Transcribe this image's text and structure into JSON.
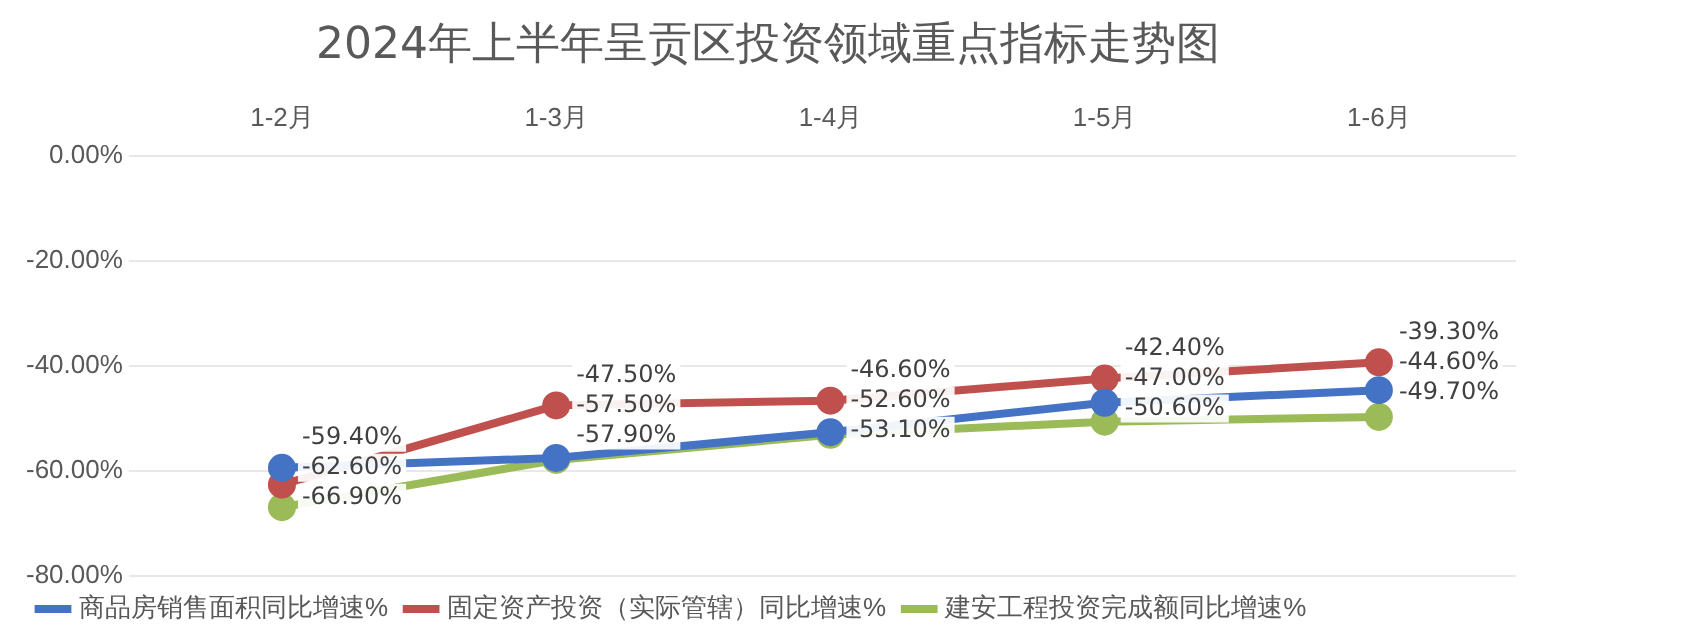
{
  "chart_data": {
    "type": "line",
    "title": "2024年上半年呈贡区投资领域重点指标走势图",
    "categories": [
      "1-2月",
      "1-3月",
      "1-4月",
      "1-5月",
      "1-6月"
    ],
    "series": [
      {
        "name": "商品房销售面积同比增速%",
        "color": "#4472c4",
        "values": [
          -59.4,
          -57.5,
          -52.6,
          -47.0,
          -44.6
        ],
        "value_labels": [
          "-59.40%",
          "-57.50%",
          "-52.60%",
          "-47.00%",
          "-44.60%"
        ]
      },
      {
        "name": "固定资产投资（实际管辖）同比增速%",
        "color": "#c0504d",
        "values": [
          -62.6,
          -47.5,
          -46.6,
          -42.4,
          -39.3
        ],
        "value_labels": [
          "-62.60%",
          "-47.50%",
          "-46.60%",
          "-42.40%",
          "-39.30%"
        ]
      },
      {
        "name": "建安工程投资完成额同比增速%",
        "color": "#9bbb59",
        "values": [
          -66.9,
          -57.9,
          -53.1,
          -50.6,
          -49.7
        ],
        "value_labels": [
          "-66.90%",
          "-57.90%",
          "-53.10%",
          "-50.60%",
          "-49.70%"
        ]
      }
    ],
    "ylim": [
      -80,
      0
    ],
    "yticks": [
      {
        "value": -80,
        "label": "-80.00%"
      },
      {
        "value": -60,
        "label": "-60.00%"
      },
      {
        "value": -40,
        "label": "-40.00%"
      },
      {
        "value": -20,
        "label": "-20.00%"
      },
      {
        "value": 0,
        "label": "0.00%"
      }
    ],
    "grid": "y",
    "legend": "bottom",
    "marker": "circle",
    "line_style": "solid"
  }
}
